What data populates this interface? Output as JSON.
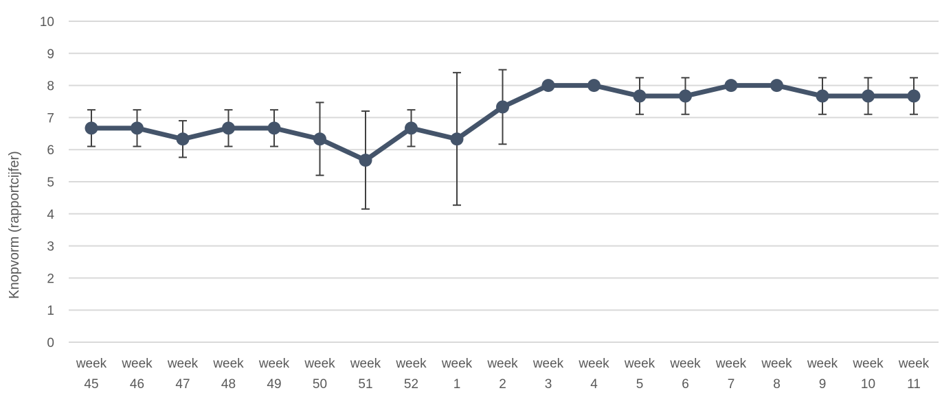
{
  "chart_data": {
    "type": "line",
    "title": "",
    "xlabel": "",
    "ylabel": "Knopvorm (rapportcijfer)",
    "ylim": [
      0,
      10
    ],
    "yticks": [
      0,
      1,
      2,
      3,
      4,
      5,
      6,
      7,
      8,
      9,
      10
    ],
    "grid": true,
    "legend": "none",
    "categories": [
      [
        "week",
        "45"
      ],
      [
        "week",
        "46"
      ],
      [
        "week",
        "47"
      ],
      [
        "week",
        "48"
      ],
      [
        "week",
        "49"
      ],
      [
        "week",
        "50"
      ],
      [
        "week",
        "51"
      ],
      [
        "week",
        "52"
      ],
      [
        "week",
        "1"
      ],
      [
        "week",
        "2"
      ],
      [
        "week",
        "3"
      ],
      [
        "week",
        "4"
      ],
      [
        "week",
        "5"
      ],
      [
        "week",
        "6"
      ],
      [
        "week",
        "7"
      ],
      [
        "week",
        "8"
      ],
      [
        "week",
        "9"
      ],
      [
        "week",
        "10"
      ],
      [
        "week",
        "11"
      ]
    ],
    "series": [
      {
        "values": [
          6.67,
          6.67,
          6.33,
          6.67,
          6.67,
          6.33,
          5.67,
          6.67,
          6.33,
          7.33,
          8.0,
          8.0,
          7.67,
          7.67,
          8.0,
          8.0,
          7.67,
          7.67,
          7.67
        ],
        "error_low": [
          6.1,
          6.1,
          5.76,
          6.1,
          6.1,
          5.2,
          4.15,
          6.1,
          4.27,
          6.17,
          null,
          null,
          7.1,
          7.1,
          null,
          null,
          7.1,
          7.1,
          7.1
        ],
        "error_high": [
          7.24,
          7.24,
          6.9,
          7.24,
          7.24,
          7.47,
          7.2,
          7.24,
          8.4,
          8.49,
          null,
          null,
          8.24,
          8.24,
          null,
          null,
          8.24,
          8.24,
          8.24
        ],
        "color": "#44546a"
      }
    ],
    "colors": {
      "grid": "#d9d9d9",
      "tick_text": "#595959",
      "error_bar": "#404040"
    }
  }
}
